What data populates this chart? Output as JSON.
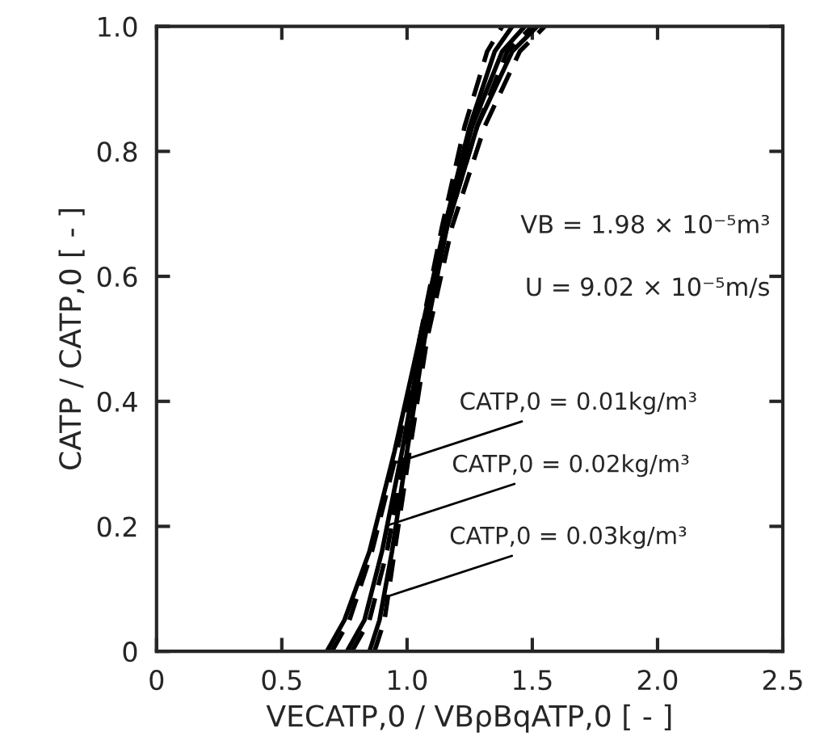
{
  "chart_data": {
    "type": "line",
    "xlabel": "VECATP,0 / VBρBqATP,0 [ - ]",
    "ylabel": "CATP / CATP,0 [ - ]",
    "xlim": [
      0,
      2.5
    ],
    "ylim": [
      0,
      1.0
    ],
    "xticks": [
      0,
      0.5,
      {
        "value": 1.0,
        "label": "1.0"
      },
      1.5,
      {
        "value": 2.0,
        "label": "2.0"
      },
      2.5
    ],
    "yticks": [
      0,
      0.2,
      0.4,
      0.6,
      0.8,
      {
        "value": 1.0,
        "label": "1.0"
      }
    ],
    "grid": false,
    "legend": false,
    "marker": "none",
    "series": [
      {
        "color": "#000000",
        "line_style": "solid",
        "x": [
          0.68,
          0.75,
          0.85,
          0.95,
          1.05,
          1.15,
          1.25,
          1.35,
          1.42
        ],
        "values": [
          0,
          0.05,
          0.16,
          0.32,
          0.5,
          0.68,
          0.84,
          0.96,
          1.0
        ]
      },
      {
        "color": "#000000",
        "line_style": "dashed",
        "x": [
          0.7,
          0.77,
          0.86,
          0.96,
          1.05,
          1.14,
          1.23,
          1.32,
          1.38
        ],
        "values": [
          0,
          0.05,
          0.16,
          0.32,
          0.5,
          0.68,
          0.84,
          0.96,
          1.0
        ]
      },
      {
        "color": "#000000",
        "line_style": "solid",
        "x": [
          0.76,
          0.83,
          0.9,
          0.98,
          1.06,
          1.15,
          1.26,
          1.38,
          1.47
        ],
        "values": [
          0,
          0.05,
          0.16,
          0.32,
          0.5,
          0.68,
          0.84,
          0.96,
          1.0
        ]
      },
      {
        "color": "#000000",
        "line_style": "dashed",
        "x": [
          0.78,
          0.85,
          0.92,
          0.99,
          1.06,
          1.16,
          1.28,
          1.4,
          1.5
        ],
        "values": [
          0,
          0.05,
          0.16,
          0.32,
          0.5,
          0.68,
          0.84,
          0.96,
          1.0
        ]
      },
      {
        "color": "#000000",
        "line_style": "solid",
        "x": [
          0.85,
          0.89,
          0.94,
          1.0,
          1.07,
          1.16,
          1.28,
          1.42,
          1.52
        ],
        "values": [
          0,
          0.05,
          0.16,
          0.32,
          0.5,
          0.68,
          0.84,
          0.96,
          1.0
        ]
      },
      {
        "color": "#000000",
        "line_style": "dashed",
        "x": [
          0.87,
          0.91,
          0.95,
          1.01,
          1.08,
          1.18,
          1.31,
          1.45,
          1.55
        ],
        "values": [
          0,
          0.05,
          0.16,
          0.32,
          0.5,
          0.68,
          0.84,
          0.96,
          1.0
        ]
      }
    ],
    "annotations": [
      "VB = 1.98 × 10⁻⁵m³",
      "U = 9.02 × 10⁻⁵m/s",
      {
        "text": "CATP,0 = 0.01kg/m³",
        "x": 0.94,
        "y": 0.3
      },
      {
        "text": "CATP,0 = 0.02kg/m³",
        "x": 0.91,
        "y": 0.2
      },
      {
        "text": "CATP,0 = 0.03kg/m³",
        "x": 0.9,
        "y": 0.085
      }
    ]
  }
}
